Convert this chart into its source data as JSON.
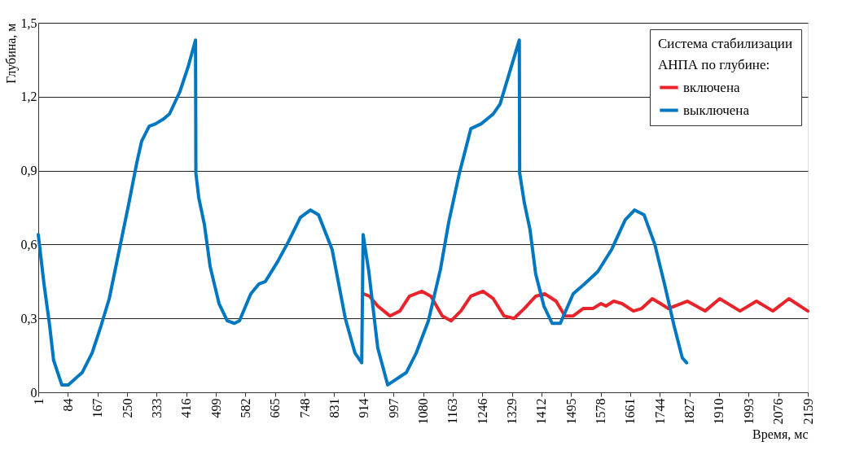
{
  "chart_data": {
    "type": "line",
    "xlabel": "Время, мс",
    "ylabel": "Глубина, м",
    "legend_title": "Система стабилизации\nАНПА по глубине:",
    "xlim": [
      1,
      2159
    ],
    "xticks": [
      1,
      84,
      167,
      250,
      333,
      416,
      499,
      582,
      665,
      748,
      831,
      914,
      997,
      1080,
      1163,
      1246,
      1329,
      1412,
      1495,
      1578,
      1661,
      1744,
      1827,
      1910,
      1993,
      2076,
      2159
    ],
    "ylim": [
      0,
      1.5
    ],
    "yticks": [
      0,
      {
        "value": 0.3,
        "label": "0,3"
      },
      {
        "value": 0.6,
        "label": "0,6"
      },
      {
        "value": 0.9,
        "label": "0,9"
      },
      {
        "value": 1.2,
        "label": "1,2"
      },
      {
        "value": 1.5,
        "label": "1,5"
      }
    ],
    "grid": "y",
    "legend": "top right",
    "line_style": "solid",
    "marker": "none",
    "series": [
      {
        "name": "включена",
        "color": "#e8232a",
        "x": [
          912,
          930,
          953,
          987,
          1015,
          1042,
          1077,
          1102,
          1134,
          1159,
          1186,
          1214,
          1248,
          1277,
          1307,
          1335,
          1364,
          1396,
          1421,
          1453,
          1478,
          1501,
          1529,
          1556,
          1579,
          1593,
          1615,
          1638,
          1670,
          1693,
          1723,
          1746,
          1768,
          1821,
          1871,
          1912,
          1969,
          2015,
          2061,
          2106,
          2159
        ],
        "values": [
          0.4,
          0.39,
          0.35,
          0.31,
          0.33,
          0.39,
          0.41,
          0.39,
          0.31,
          0.29,
          0.33,
          0.39,
          0.41,
          0.38,
          0.31,
          0.3,
          0.34,
          0.39,
          0.4,
          0.37,
          0.31,
          0.31,
          0.34,
          0.34,
          0.36,
          0.35,
          0.37,
          0.36,
          0.33,
          0.34,
          0.38,
          0.36,
          0.34,
          0.37,
          0.33,
          0.38,
          0.33,
          0.37,
          0.33,
          0.38,
          0.33
        ]
      },
      {
        "name": "выключена",
        "color": "#0077c0",
        "x": [
          1,
          17,
          33,
          44,
          67,
          85,
          124,
          152,
          177,
          200,
          227,
          254,
          277,
          291,
          312,
          330,
          353,
          369,
          398,
          421,
          442,
          443,
          451,
          467,
          483,
          508,
          531,
          551,
          565,
          597,
          620,
          638,
          672,
          702,
          736,
          764,
          787,
          825,
          862,
          889,
          908,
          912,
          928,
          953,
          981,
          1033,
          1061,
          1095,
          1129,
          1152,
          1182,
          1214,
          1243,
          1277,
          1296,
          1350,
          1351,
          1364,
          1380,
          1396,
          1419,
          1442,
          1465,
          1501,
          1533,
          1570,
          1609,
          1647,
          1673,
          1700,
          1730,
          1757,
          1784,
          1807,
          1819
        ],
        "values": [
          0.64,
          0.44,
          0.27,
          0.13,
          0.03,
          0.03,
          0.08,
          0.16,
          0.27,
          0.38,
          0.57,
          0.76,
          0.93,
          1.02,
          1.08,
          1.09,
          1.11,
          1.13,
          1.22,
          1.32,
          1.43,
          0.89,
          0.79,
          0.68,
          0.51,
          0.36,
          0.29,
          0.28,
          0.29,
          0.4,
          0.44,
          0.45,
          0.53,
          0.61,
          0.71,
          0.74,
          0.72,
          0.58,
          0.3,
          0.16,
          0.12,
          0.64,
          0.49,
          0.18,
          0.03,
          0.08,
          0.16,
          0.29,
          0.5,
          0.69,
          0.89,
          1.07,
          1.09,
          1.13,
          1.17,
          1.43,
          0.89,
          0.77,
          0.66,
          0.48,
          0.35,
          0.28,
          0.28,
          0.4,
          0.44,
          0.49,
          0.58,
          0.7,
          0.74,
          0.72,
          0.6,
          0.44,
          0.27,
          0.14,
          0.12
        ]
      }
    ]
  }
}
